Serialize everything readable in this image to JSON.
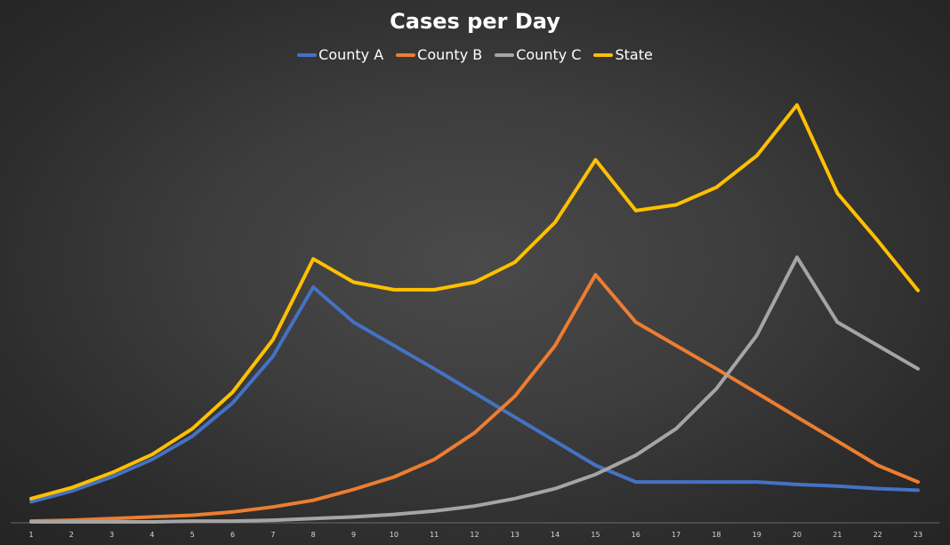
{
  "chart_data": {
    "type": "line",
    "title": "Cases per Day",
    "xlabel": "",
    "ylabel": "",
    "legend_position": "top",
    "grid": false,
    "x": [
      "1",
      "2",
      "3",
      "4",
      "5",
      "6",
      "7",
      "8",
      "9",
      "10",
      "11",
      "12",
      "13",
      "14",
      "15",
      "16",
      "17",
      "18",
      "19",
      "20",
      "21",
      "22",
      "23"
    ],
    "ylim": [
      0,
      500
    ],
    "series": [
      {
        "name": "County A",
        "color": "#4472C4",
        "values": [
          24,
          37,
          54,
          75,
          103,
          143,
          199,
          282,
          240,
          212,
          184,
          155,
          126,
          97,
          68,
          48,
          48,
          48,
          48,
          45,
          43,
          40,
          38
        ]
      },
      {
        "name": "County B",
        "color": "#ED7D31",
        "values": [
          1,
          2,
          4,
          6,
          8,
          12,
          18,
          26,
          39,
          54,
          75,
          107,
          151,
          212,
          297,
          240,
          212,
          184,
          155,
          126,
          97,
          68,
          48
        ]
      },
      {
        "name": "County C",
        "color": "#A5A5A5",
        "values": [
          0,
          0,
          0,
          0,
          1,
          1,
          2,
          4,
          6,
          9,
          13,
          19,
          28,
          40,
          57,
          80,
          112,
          160,
          224,
          318,
          240,
          212,
          184
        ]
      },
      {
        "name": "State",
        "color": "#FFC000",
        "values": [
          28,
          41,
          59,
          81,
          112,
          156,
          219,
          316,
          288,
          279,
          279,
          288,
          312,
          360,
          435,
          374,
          381,
          402,
          440,
          501,
          395,
          338,
          278
        ]
      }
    ]
  }
}
